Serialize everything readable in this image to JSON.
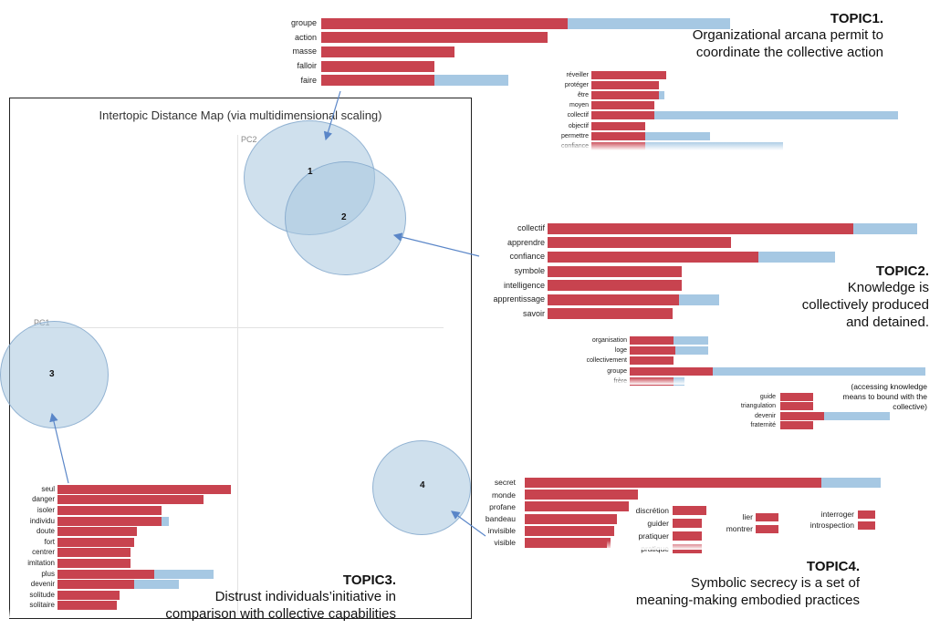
{
  "map": {
    "title": "Intertopic Distance Map (via multidimensional scaling)",
    "pc1_label": "PC1",
    "pc2_label": "PC2",
    "topic_numbers": [
      "1",
      "2",
      "3",
      "4"
    ]
  },
  "topic1": {
    "title": "TOPIC1.",
    "desc": [
      "Organizational arcana permit to",
      "coordinate the collective action"
    ],
    "main_bars": [
      {
        "label": "groupe",
        "topic": 1.0,
        "total": 1.66
      },
      {
        "label": "action",
        "topic": 0.92,
        "total": 0.92
      },
      {
        "label": "masse",
        "topic": 0.54,
        "total": 0.54
      },
      {
        "label": "falloir",
        "topic": 0.46,
        "total": 0.46
      },
      {
        "label": "faire",
        "topic": 0.46,
        "total": 0.76
      }
    ],
    "sub_bars": [
      {
        "label": "réveiller",
        "topic": 0.39,
        "total": 0.39
      },
      {
        "label": "protéger",
        "topic": 0.35,
        "total": 0.35
      },
      {
        "label": "être",
        "topic": 0.35,
        "total": 0.38
      },
      {
        "label": "moyen",
        "topic": 0.33,
        "total": 0.33
      },
      {
        "label": "collectif",
        "topic": 0.33,
        "total": 1.6
      },
      {
        "label": "objectif",
        "topic": 0.28,
        "total": 0.28
      },
      {
        "label": "permettre",
        "topic": 0.28,
        "total": 0.62
      },
      {
        "label": "confiance",
        "topic": 0.28,
        "total": 1.0
      }
    ]
  },
  "topic2": {
    "title": "TOPIC2.",
    "desc": [
      "Knowledge is",
      "collectively produced",
      "and detained."
    ],
    "note": [
      "(accessing knowledge",
      "means to bound with the",
      "collective)"
    ],
    "main_bars": [
      {
        "label": "collectif",
        "topic": 1.0,
        "total": 1.21
      },
      {
        "label": "apprendre",
        "topic": 0.6,
        "total": 0.6
      },
      {
        "label": "confiance",
        "topic": 0.69,
        "total": 0.94
      },
      {
        "label": "symbole",
        "topic": 0.44,
        "total": 0.44
      },
      {
        "label": "intelligence",
        "topic": 0.44,
        "total": 0.44
      },
      {
        "label": "apprentissage",
        "topic": 0.43,
        "total": 0.56
      },
      {
        "label": "savoir",
        "topic": 0.41,
        "total": 0.41
      }
    ],
    "sub_bars": [
      {
        "label": "organisation",
        "topic": 0.2,
        "total": 0.36
      },
      {
        "label": "loge",
        "topic": 0.21,
        "total": 0.36
      },
      {
        "label": "collectivement",
        "topic": 0.2,
        "total": 0.2
      },
      {
        "label": "groupe",
        "topic": 0.38,
        "total": 1.35
      },
      {
        "label": "frère",
        "topic": 0.2,
        "total": 0.25
      }
    ],
    "sub2_bars": [
      {
        "label": "guide",
        "topic": 0.3,
        "total": 0.3
      },
      {
        "label": "triangulation",
        "topic": 0.3,
        "total": 0.3
      },
      {
        "label": "devenir",
        "topic": 0.4,
        "total": 1.0
      },
      {
        "label": "fraternité",
        "topic": 0.3,
        "total": 0.3
      }
    ]
  },
  "topic3": {
    "title": "TOPIC3.",
    "desc": [
      "Distrust individuals’initiative in",
      "comparison with collective capabilities"
    ],
    "bars": [
      {
        "label": "seul",
        "topic": 1.0,
        "total": 1.0
      },
      {
        "label": "danger",
        "topic": 0.84,
        "total": 0.84
      },
      {
        "label": "isoler",
        "topic": 0.6,
        "total": 0.6
      },
      {
        "label": "individu",
        "topic": 0.6,
        "total": 0.64
      },
      {
        "label": "doute",
        "topic": 0.46,
        "total": 0.46
      },
      {
        "label": "fort",
        "topic": 0.44,
        "total": 0.44
      },
      {
        "label": "centrer",
        "topic": 0.42,
        "total": 0.42
      },
      {
        "label": "imitation",
        "topic": 0.42,
        "total": 0.42
      },
      {
        "label": "plus",
        "topic": 0.56,
        "total": 0.9
      },
      {
        "label": "devenir",
        "topic": 0.44,
        "total": 0.7
      },
      {
        "label": "solitude",
        "topic": 0.36,
        "total": 0.36
      },
      {
        "label": "solitaire",
        "topic": 0.34,
        "total": 0.34
      }
    ]
  },
  "topic4": {
    "title": "TOPIC4.",
    "desc": [
      "Symbolic secrecy is a set of",
      "meaning-making embodied practices"
    ],
    "main_bars": [
      {
        "label": "secret",
        "topic": 1.0,
        "total": 1.2
      },
      {
        "label": "monde",
        "topic": 0.38,
        "total": 0.38
      },
      {
        "label": "profane",
        "topic": 0.35,
        "total": 0.35
      },
      {
        "label": "bandeau",
        "topic": 0.31,
        "total": 0.31
      },
      {
        "label": "invisible",
        "topic": 0.3,
        "total": 0.3
      },
      {
        "label": "visible",
        "topic": 0.29,
        "total": 0.29
      }
    ],
    "sub_bars": [
      {
        "label": "discrétion",
        "topic": 0.8,
        "total": 0.8
      },
      {
        "label": "guider",
        "topic": 0.7,
        "total": 0.7
      },
      {
        "label": "pratiquer",
        "topic": 0.7,
        "total": 0.7
      },
      {
        "label": "pratique",
        "topic": 0.7,
        "total": 0.7
      }
    ],
    "sub2_bars": [
      {
        "label": "lier",
        "topic": 1.0,
        "total": 1.0
      },
      {
        "label": "montrer",
        "topic": 1.0,
        "total": 1.0
      }
    ],
    "sub3_bars": [
      {
        "label": "interroger",
        "topic": 1.0,
        "total": 1.0
      },
      {
        "label": "introspection",
        "topic": 1.0,
        "total": 1.0
      }
    ]
  },
  "colors": {
    "topic_bar": "#c8434f",
    "total_bar": "#a6c8e3",
    "circle": "#a8c6de",
    "arrow": "#5a86c8"
  }
}
